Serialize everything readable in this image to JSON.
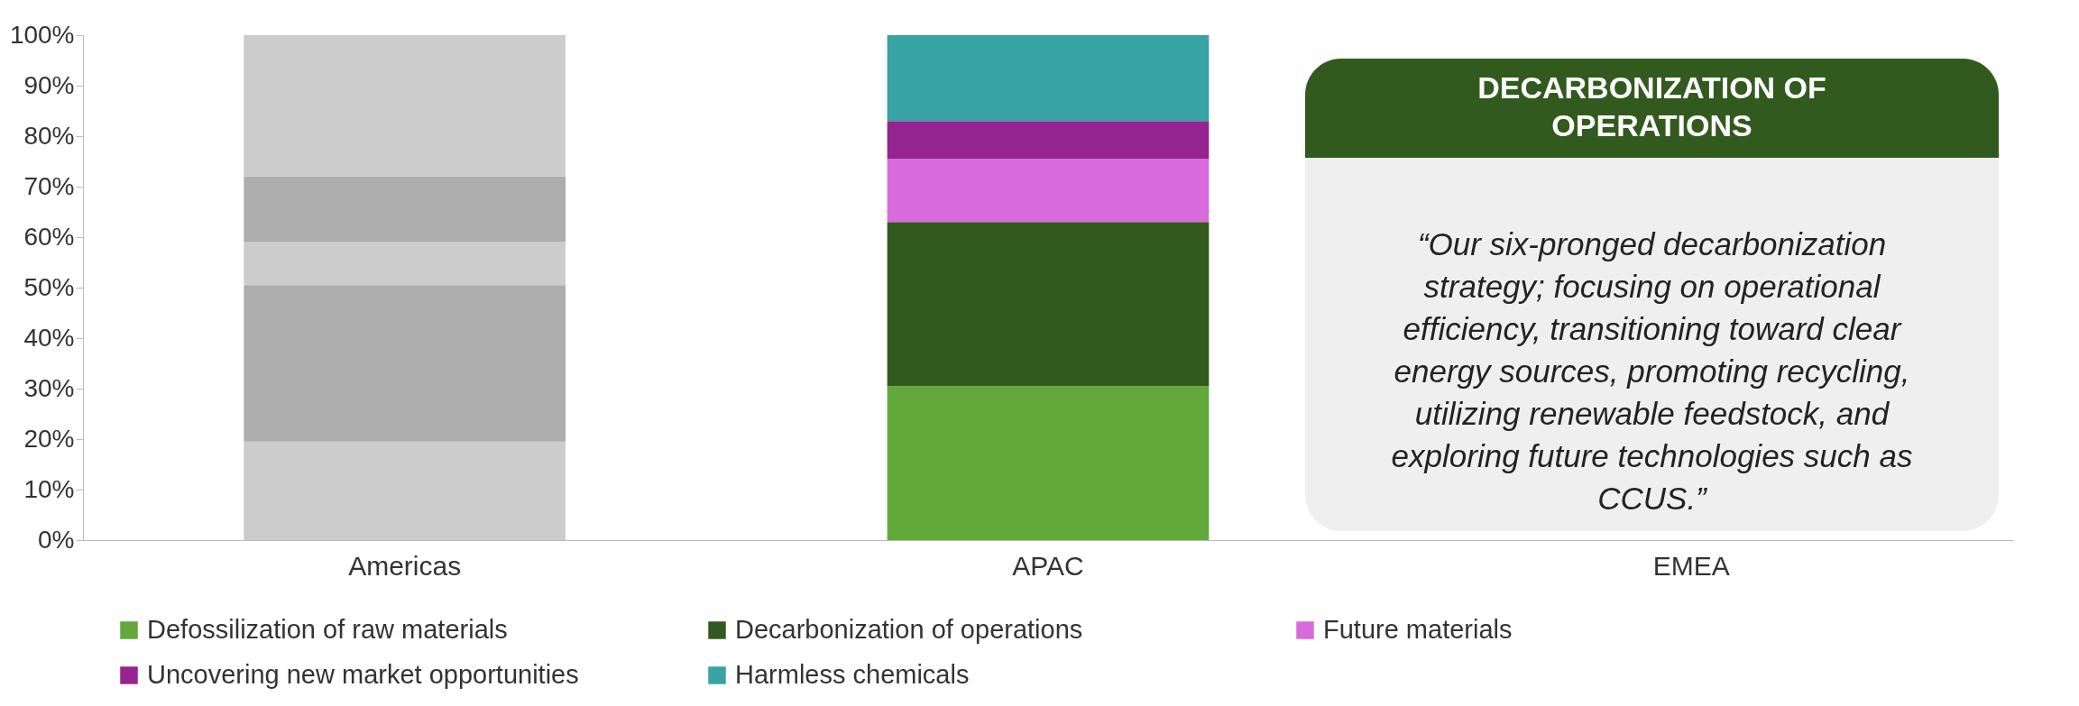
{
  "chart_data": {
    "type": "bar",
    "stacked": true,
    "categories": [
      "Americas",
      "APAC",
      "EMEA"
    ],
    "ylim": [
      0,
      100
    ],
    "yticks": [
      {
        "value": 0,
        "label": "0%"
      },
      {
        "value": 10,
        "label": "10%"
      },
      {
        "value": 20,
        "label": "20%"
      },
      {
        "value": 30,
        "label": "30%"
      },
      {
        "value": 40,
        "label": "40%"
      },
      {
        "value": 50,
        "label": "50%"
      },
      {
        "value": 60,
        "label": "60%"
      },
      {
        "value": 70,
        "label": "70%"
      },
      {
        "value": 80,
        "label": "80%"
      },
      {
        "value": 90,
        "label": "90%"
      },
      {
        "value": 100,
        "label": "100%"
      }
    ],
    "series": [
      {
        "name": "Defossilization of raw materials",
        "color": "#62a83a",
        "colors": [
          "#cccccc",
          "#62a83a",
          null
        ],
        "values": [
          19.5,
          30.5,
          null
        ]
      },
      {
        "name": "Decarbonization of operations",
        "color": "#335a1e",
        "colors": [
          "#adadad",
          "#335a1e",
          null
        ],
        "values": [
          31,
          32.5,
          null
        ]
      },
      {
        "name": "Future materials",
        "color": "#d86bdb",
        "colors": [
          "#cccccc",
          "#d86bdb",
          null
        ],
        "values": [
          8.5,
          12.5,
          null
        ]
      },
      {
        "name": "Uncovering new market opportunities",
        "color": "#952491",
        "colors": [
          "#adadad",
          "#952491",
          null
        ],
        "values": [
          13,
          7.5,
          null
        ]
      },
      {
        "name": "Harmless chemicals",
        "color": "#38a3a5",
        "colors": [
          "#cccccc",
          "#38a3a5",
          null
        ],
        "values": [
          28,
          17,
          null
        ]
      }
    ],
    "legend": "bottom",
    "grid": false,
    "annotations": [
      "DECARBONIZATION OF OPERATIONS",
      "“Our six-pronged decarbonization strategy; focusing on operational efficiency, transitioning toward clear energy sources, promoting recycling, utilizing renewable feedstock, and exploring future technologies such as CCUS.”"
    ]
  }
}
